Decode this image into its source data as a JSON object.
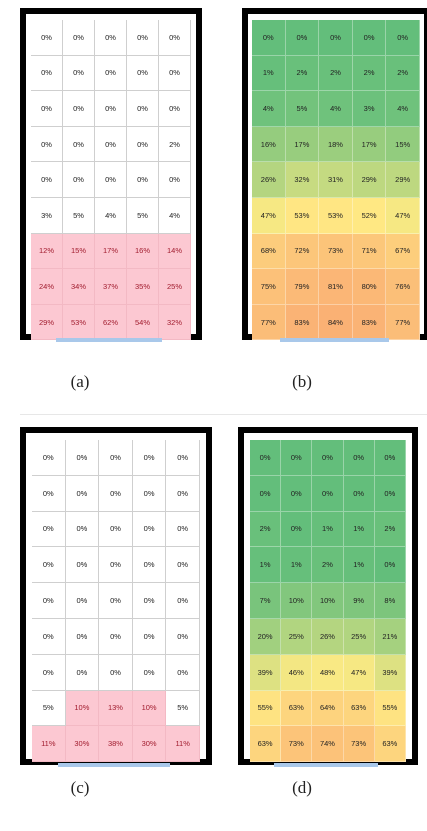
{
  "panels": [
    {
      "id": "a",
      "caption": "(a)",
      "style": "pink",
      "rows": [
        [
          "0%",
          "0%",
          "0%",
          "0%",
          "0%"
        ],
        [
          "0%",
          "0%",
          "0%",
          "0%",
          "0%"
        ],
        [
          "0%",
          "0%",
          "0%",
          "0%",
          "0%"
        ],
        [
          "0%",
          "0%",
          "0%",
          "0%",
          "2%"
        ],
        [
          "0%",
          "0%",
          "0%",
          "0%",
          "0%"
        ],
        [
          "3%",
          "5%",
          "4%",
          "5%",
          "4%"
        ],
        [
          "12%",
          "15%",
          "17%",
          "16%",
          "14%"
        ],
        [
          "24%",
          "34%",
          "37%",
          "35%",
          "25%"
        ],
        [
          "29%",
          "53%",
          "62%",
          "54%",
          "32%"
        ]
      ]
    },
    {
      "id": "b",
      "caption": "(b)",
      "style": "heat",
      "rows": [
        [
          "0%",
          "0%",
          "0%",
          "0%",
          "0%"
        ],
        [
          "1%",
          "2%",
          "2%",
          "2%",
          "2%"
        ],
        [
          "4%",
          "5%",
          "4%",
          "3%",
          "4%"
        ],
        [
          "16%",
          "17%",
          "18%",
          "17%",
          "15%"
        ],
        [
          "26%",
          "32%",
          "31%",
          "29%",
          "29%"
        ],
        [
          "47%",
          "53%",
          "53%",
          "52%",
          "47%"
        ],
        [
          "68%",
          "72%",
          "73%",
          "71%",
          "67%"
        ],
        [
          "75%",
          "79%",
          "81%",
          "80%",
          "76%"
        ],
        [
          "77%",
          "83%",
          "84%",
          "83%",
          "77%"
        ]
      ]
    },
    {
      "id": "c",
      "caption": "(c)",
      "style": "pink",
      "rows": [
        [
          "0%",
          "0%",
          "0%",
          "0%",
          "0%"
        ],
        [
          "0%",
          "0%",
          "0%",
          "0%",
          "0%"
        ],
        [
          "0%",
          "0%",
          "0%",
          "0%",
          "0%"
        ],
        [
          "0%",
          "0%",
          "0%",
          "0%",
          "0%"
        ],
        [
          "0%",
          "0%",
          "0%",
          "0%",
          "0%"
        ],
        [
          "0%",
          "0%",
          "0%",
          "0%",
          "0%"
        ],
        [
          "0%",
          "0%",
          "0%",
          "0%",
          "0%"
        ],
        [
          "5%",
          "10%",
          "13%",
          "10%",
          "5%"
        ],
        [
          "11%",
          "30%",
          "38%",
          "30%",
          "11%"
        ]
      ]
    },
    {
      "id": "d",
      "caption": "(d)",
      "style": "heat",
      "rows": [
        [
          "0%",
          "0%",
          "0%",
          "0%",
          "0%"
        ],
        [
          "0%",
          "0%",
          "0%",
          "0%",
          "0%"
        ],
        [
          "2%",
          "0%",
          "1%",
          "1%",
          "2%"
        ],
        [
          "1%",
          "1%",
          "2%",
          "1%",
          "0%"
        ],
        [
          "7%",
          "10%",
          "10%",
          "9%",
          "8%"
        ],
        [
          "20%",
          "25%",
          "26%",
          "25%",
          "21%"
        ],
        [
          "39%",
          "46%",
          "48%",
          "47%",
          "39%"
        ],
        [
          "55%",
          "63%",
          "64%",
          "63%",
          "55%"
        ],
        [
          "63%",
          "73%",
          "74%",
          "73%",
          "63%"
        ]
      ]
    }
  ],
  "colors": {
    "pink_fill": "#fcc8d2",
    "pink_text": "#a11c2e",
    "plain_text": "#222222",
    "heat_low": "#63be7b",
    "heat_mid": "#ffeb84",
    "heat_high": "#f8966d",
    "frame": "#000000",
    "bottom_bar": "#a9c8ea"
  }
}
